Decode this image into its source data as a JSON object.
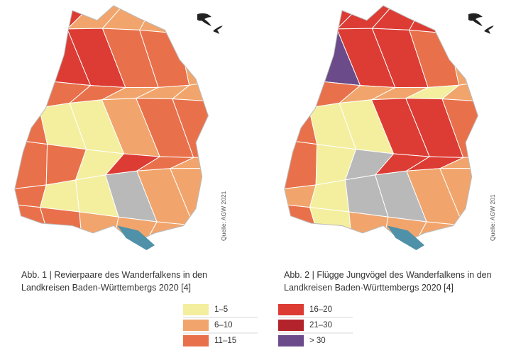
{
  "figures": [
    {
      "caption": [
        "Abb. 1 | Revierpaare des Wanderfalkens in den",
        "Landkreisen Baden-Württembergs 2020 [4]"
      ],
      "source": "Quelle: AGW 2021"
    },
    {
      "caption": [
        "Abb. 2 | Flügge Jungvögel des Wanderfalkens in den",
        "Landkreisen Baden-Württembergs 2020 [4]"
      ],
      "source": "Quelle: AGW 201"
    }
  ],
  "legend": [
    {
      "label": "1–5",
      "color": "#f3ef9f"
    },
    {
      "label": "6–10",
      "color": "#f1a56c"
    },
    {
      "label": "11–15",
      "color": "#e8714b"
    },
    {
      "label": "16–20",
      "color": "#dc3c34"
    },
    {
      "label": "21–30",
      "color": "#b3232b"
    },
    {
      "label": "> 30",
      "color": "#6b4b8a"
    }
  ]
}
